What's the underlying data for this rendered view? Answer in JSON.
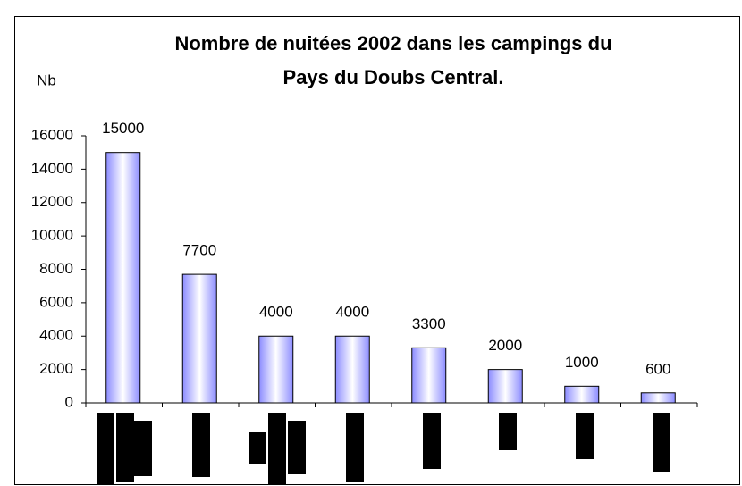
{
  "chart_data": {
    "type": "bar",
    "title": [
      "Nombre de nuitées 2002 dans les campings du",
      "Pays du Doubs Central."
    ],
    "y_label": "Nb",
    "categories": [
      null,
      null,
      null,
      null,
      null,
      null,
      null,
      null
    ],
    "values": [
      15000,
      7700,
      4000,
      4000,
      3300,
      2000,
      1000,
      600
    ],
    "color": "#8c8cff",
    "ylim": [
      0,
      16000
    ],
    "yticks": [
      0,
      2000,
      4000,
      6000,
      8000,
      10000,
      12000,
      14000,
      16000
    ],
    "grid": false
  }
}
